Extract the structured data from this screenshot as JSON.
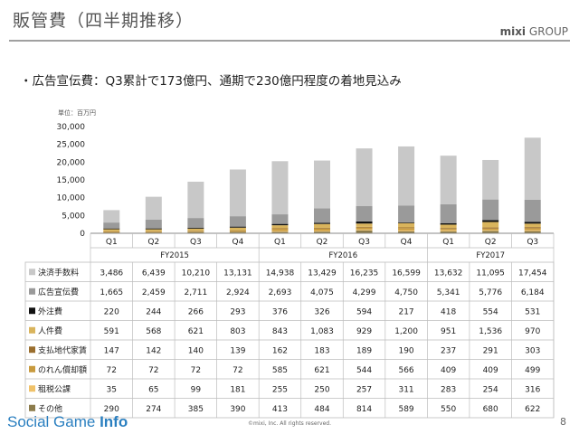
{
  "header": {
    "title": "販管費（四半期推移）",
    "logo_main": "mixi",
    "logo_sub": "GROUP",
    "headline": "・広告宣伝費：Q3累計で173億円、通期で230億円程度の着地見込み"
  },
  "footer": {
    "brand_main": "Social Game",
    "brand_sub": "Info",
    "copyright": "©mixi, Inc. All rights reserved.",
    "page": "8"
  },
  "chart_data": {
    "type": "bar",
    "stacked": true,
    "unit_label": "単位：百万円",
    "ylim": [
      0,
      30000
    ],
    "yticks": [
      "0",
      "5,000",
      "10,000",
      "15,000",
      "20,000",
      "25,000",
      "30,000"
    ],
    "categories": [
      "Q1",
      "Q2",
      "Q3",
      "Q4",
      "Q1",
      "Q2",
      "Q3",
      "Q4",
      "Q1",
      "Q2",
      "Q3"
    ],
    "fiscal_years": [
      {
        "label": "FY2015",
        "span": 4
      },
      {
        "label": "FY2016",
        "span": 4
      },
      {
        "label": "FY2017",
        "span": 3
      }
    ],
    "series": [
      {
        "name": "その他",
        "color": "#8c7c4c",
        "values": [
          290,
          274,
          385,
          390,
          413,
          484,
          814,
          589,
          550,
          680,
          622
        ],
        "labels": [
          "290",
          "274",
          "385",
          "390",
          "413",
          "484",
          "814",
          "589",
          "550",
          "680",
          "622"
        ]
      },
      {
        "name": "租税公課",
        "color": "#f0c26a",
        "values": [
          35,
          65,
          99,
          181,
          255,
          250,
          257,
          311,
          283,
          254,
          316
        ],
        "labels": [
          "35",
          "65",
          "99",
          "181",
          "255",
          "250",
          "257",
          "311",
          "283",
          "254",
          "316"
        ]
      },
      {
        "name": "のれん償却額",
        "color": "#c89a3e",
        "values": [
          72,
          72,
          72,
          72,
          585,
          621,
          544,
          566,
          409,
          409,
          499
        ],
        "labels": [
          "72",
          "72",
          "72",
          "72",
          "585",
          "621",
          "544",
          "566",
          "409",
          "409",
          "499"
        ]
      },
      {
        "name": "支払地代家賃",
        "color": "#9a6e2e",
        "values": [
          147,
          142,
          140,
          139,
          162,
          183,
          189,
          190,
          237,
          291,
          303
        ],
        "labels": [
          "147",
          "142",
          "140",
          "139",
          "162",
          "183",
          "189",
          "190",
          "237",
          "291",
          "303"
        ]
      },
      {
        "name": "人件費",
        "color": "#d9b45c",
        "values": [
          591,
          568,
          621,
          803,
          843,
          1083,
          929,
          1200,
          951,
          1536,
          970
        ],
        "labels": [
          "591",
          "568",
          "621",
          "803",
          "843",
          "1,083",
          "929",
          "1,200",
          "951",
          "1,536",
          "970"
        ]
      },
      {
        "name": "外注費",
        "color": "#111111",
        "values": [
          220,
          244,
          266,
          293,
          376,
          326,
          594,
          217,
          418,
          554,
          531
        ],
        "labels": [
          "220",
          "244",
          "266",
          "293",
          "376",
          "326",
          "594",
          "217",
          "418",
          "554",
          "531"
        ]
      },
      {
        "name": "広告宣伝費",
        "color": "#9a9a9a",
        "values": [
          1665,
          2459,
          2711,
          2924,
          2693,
          4075,
          4299,
          4750,
          5341,
          5776,
          6184
        ],
        "labels": [
          "1,665",
          "2,459",
          "2,711",
          "2,924",
          "2,693",
          "4,075",
          "4,299",
          "4,750",
          "5,341",
          "5,776",
          "6,184"
        ]
      },
      {
        "name": "決済手数料",
        "color": "#c8c8c8",
        "values": [
          3486,
          6439,
          10210,
          13131,
          14938,
          13429,
          16235,
          16599,
          13632,
          11095,
          17454
        ],
        "labels": [
          "3,486",
          "6,439",
          "10,210",
          "13,131",
          "14,938",
          "13,429",
          "16,235",
          "16,599",
          "13,632",
          "11,095",
          "17,454"
        ]
      }
    ],
    "table_row_order": [
      "決済手数料",
      "広告宣伝費",
      "外注費",
      "人件費",
      "支払地代家賃",
      "のれん償却額",
      "租税公課",
      "その他"
    ]
  }
}
